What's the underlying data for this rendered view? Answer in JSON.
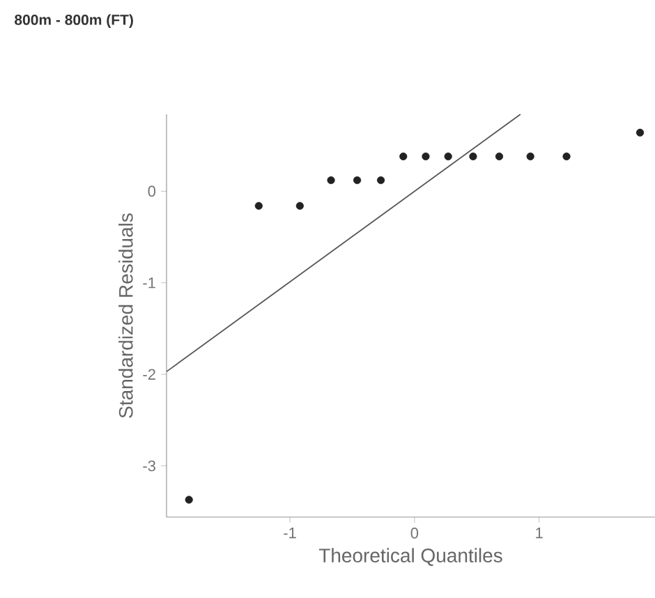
{
  "chart_data": {
    "type": "scatter",
    "title": "800m - 800m  (FT)",
    "xlabel": "Theoretical Quantiles",
    "ylabel": "Standardized Residuals",
    "xlim": [
      -1.99,
      1.93
    ],
    "ylim": [
      -3.56,
      0.84
    ],
    "xticks": [
      -1,
      0,
      1
    ],
    "yticks": [
      -3,
      -2,
      -1,
      0
    ],
    "series": [
      {
        "type": "scatter",
        "marker": "circle",
        "color": "#222222",
        "x": [
          -1.81,
          -1.25,
          -0.92,
          -0.67,
          -0.46,
          -0.27,
          -0.09,
          0.09,
          0.27,
          0.47,
          0.68,
          0.93,
          1.22,
          1.81
        ],
        "values": [
          -3.37,
          -0.16,
          -0.16,
          0.12,
          0.12,
          0.12,
          0.38,
          0.38,
          0.38,
          0.38,
          0.38,
          0.38,
          0.38,
          0.64
        ]
      },
      {
        "type": "line",
        "marker": "none",
        "color": "#555555",
        "x": [
          -1.99,
          0.85
        ],
        "values": [
          -1.97,
          0.84
        ]
      }
    ]
  }
}
